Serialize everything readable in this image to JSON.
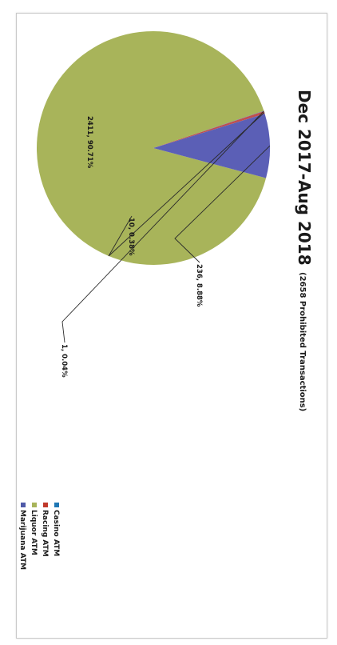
{
  "chart_data": {
    "type": "pie",
    "title": "Dec 2017-Aug 2018",
    "subtitle": "(2658 Prohibited Transactions)",
    "slices": [
      {
        "label": "Casino ATM",
        "value": 236,
        "data_label": "236, 8.88%",
        "color": "#5b5fb6"
      },
      {
        "label": "Racing ATM",
        "value": 10,
        "data_label": "10, 0.38%",
        "color": "#c0504d"
      },
      {
        "label": "Liquor ATM",
        "value": 2411,
        "data_label": "2411, 90.71%",
        "color": "#a8b45a"
      },
      {
        "label": "Marijuana ATM",
        "value": 1,
        "data_label": "1, 0.04%",
        "color": "#4472c4"
      }
    ],
    "legend": [
      {
        "label": "Casino ATM",
        "color": "#1f77b4"
      },
      {
        "label": "Racing ATM",
        "color": "#c0392b"
      },
      {
        "label": "Liquor ATM",
        "color": "#a8b45a"
      },
      {
        "label": "Marijuana ATM",
        "color": "#4f5aa8"
      }
    ],
    "legend_position": "right"
  }
}
